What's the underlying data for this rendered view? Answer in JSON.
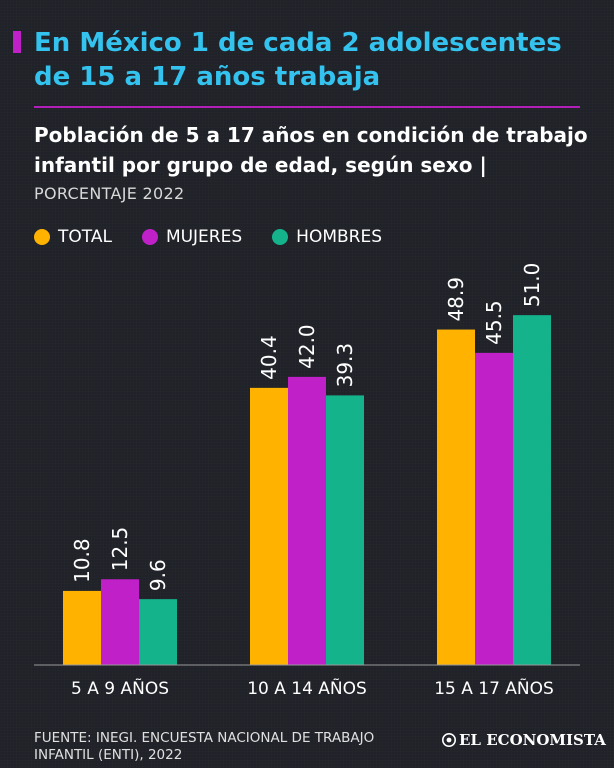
{
  "header": {
    "headline": "En México 1 de cada 2 adolescentes de 15 a 17 años trabaja",
    "subtitle": "Población de 5 a 17 años en condición de trabajo infantil por grupo de edad, según sexo |",
    "unit": "PORCENTAJE 2022"
  },
  "colors": {
    "accent_title": "#33c3ee",
    "accent_rule": "#b01fb8",
    "total": "#ffb300",
    "mujeres": "#c020c8",
    "hombres": "#14b38c",
    "background": "#1f2228"
  },
  "legend": [
    {
      "label": "TOTAL",
      "color": "#ffb300"
    },
    {
      "label": "MUJERES",
      "color": "#c020c8"
    },
    {
      "label": "HOMBRES",
      "color": "#14b38c"
    }
  ],
  "chart_data": {
    "type": "bar",
    "categories": [
      "5 A 9 AÑOS",
      "10 A 14 AÑOS",
      "15 A 17 AÑOS"
    ],
    "series": [
      {
        "name": "TOTAL",
        "color": "#ffb300",
        "values": [
          10.8,
          40.4,
          48.9
        ],
        "labels": [
          "10.8",
          "40.4",
          "48.9"
        ]
      },
      {
        "name": "MUJERES",
        "color": "#c020c8",
        "values": [
          12.5,
          42.0,
          45.5
        ],
        "labels": [
          "12.5",
          "42.0",
          "45.5"
        ]
      },
      {
        "name": "HOMBRES",
        "color": "#14b38c",
        "values": [
          9.6,
          39.3,
          51.0
        ],
        "labels": [
          "9.6",
          "39.3",
          "51.0"
        ]
      }
    ],
    "ylim": [
      0,
      51.0
    ],
    "grid": false,
    "legend_position": "top-left",
    "data_labels": "rotated-vertical"
  },
  "footer": {
    "source": "FUENTE: INEGI. ENCUESTA NACIONAL DE TRABAJO INFANTIL (ENTI), 2022",
    "brand": "EL ECONOMISTA"
  }
}
